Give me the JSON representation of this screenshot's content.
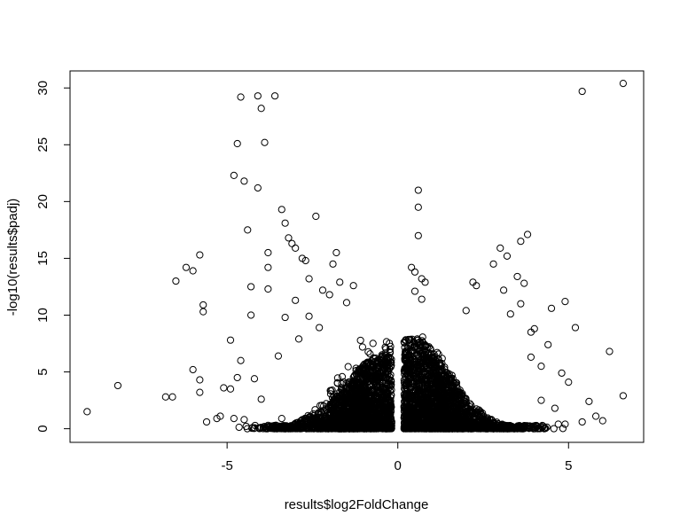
{
  "chart_data": {
    "type": "scatter",
    "title": "",
    "xlabel": "results$log2FoldChange",
    "ylabel": "-log10(results$padj)",
    "xlim": [
      -9.6,
      7.2
    ],
    "ylim": [
      -1.2,
      31.5
    ],
    "xticks": [
      -5,
      0,
      5
    ],
    "yticks": [
      0,
      5,
      10,
      15,
      20,
      25,
      30
    ],
    "xtick_labels": [
      "-5",
      "0",
      "5"
    ],
    "ytick_labels": [
      "0",
      "5",
      "10",
      "15",
      "20",
      "25",
      "30"
    ],
    "marker": "open-circle",
    "marker_color": "#000000",
    "grid": false,
    "legend": "none",
    "outlier_points": [
      [
        -9.1,
        1.5
      ],
      [
        -8.2,
        3.8
      ],
      [
        -6.8,
        2.8
      ],
      [
        -6.6,
        2.8
      ],
      [
        -6.5,
        13.0
      ],
      [
        -6.2,
        14.2
      ],
      [
        -6.0,
        13.9
      ],
      [
        -6.0,
        5.2
      ],
      [
        -5.8,
        15.3
      ],
      [
        -5.8,
        4.3
      ],
      [
        -5.8,
        3.2
      ],
      [
        -5.7,
        10.9
      ],
      [
        -5.7,
        10.3
      ],
      [
        -5.6,
        0.6
      ],
      [
        -5.3,
        0.9
      ],
      [
        -5.2,
        1.1
      ],
      [
        -5.1,
        3.6
      ],
      [
        -4.9,
        3.5
      ],
      [
        -4.9,
        7.8
      ],
      [
        -4.8,
        22.3
      ],
      [
        -4.8,
        0.9
      ],
      [
        -4.7,
        25.1
      ],
      [
        -4.6,
        29.2
      ],
      [
        -4.5,
        21.8
      ],
      [
        -4.4,
        17.5
      ],
      [
        -4.3,
        10.0
      ],
      [
        -4.3,
        12.5
      ],
      [
        -4.1,
        29.3
      ],
      [
        -4.1,
        21.2
      ],
      [
        -4.0,
        28.2
      ],
      [
        -3.9,
        25.2
      ],
      [
        -3.8,
        15.5
      ],
      [
        -3.8,
        14.2
      ],
      [
        -3.8,
        12.3
      ],
      [
        -3.6,
        29.3
      ],
      [
        -3.4,
        19.3
      ],
      [
        -3.3,
        18.1
      ],
      [
        -3.2,
        16.8
      ],
      [
        -3.1,
        16.3
      ],
      [
        -3.0,
        15.9
      ],
      [
        -2.8,
        15.0
      ],
      [
        -2.7,
        14.8
      ],
      [
        -2.6,
        13.2
      ],
      [
        -2.4,
        18.7
      ],
      [
        -2.2,
        12.2
      ],
      [
        -2.0,
        11.8
      ],
      [
        -1.9,
        14.5
      ],
      [
        -1.8,
        15.5
      ],
      [
        -1.7,
        12.9
      ],
      [
        -1.5,
        11.1
      ],
      [
        -1.3,
        12.6
      ],
      [
        -4.6,
        6.0
      ],
      [
        -4.7,
        4.5
      ],
      [
        -4.2,
        4.4
      ],
      [
        -4.5,
        0.8
      ],
      [
        -4.0,
        2.6
      ],
      [
        -3.5,
        6.4
      ],
      [
        -3.3,
        9.8
      ],
      [
        -3.0,
        11.3
      ],
      [
        -3.4,
        0.9
      ],
      [
        -2.9,
        7.9
      ],
      [
        -2.6,
        9.9
      ],
      [
        -2.3,
        8.9
      ],
      [
        0.6,
        21.0
      ],
      [
        0.6,
        19.5
      ],
      [
        0.6,
        17.0
      ],
      [
        0.4,
        14.2
      ],
      [
        0.5,
        13.8
      ],
      [
        0.7,
        13.2
      ],
      [
        0.8,
        12.9
      ],
      [
        0.5,
        12.1
      ],
      [
        0.7,
        11.4
      ],
      [
        6.6,
        30.4
      ],
      [
        5.4,
        29.7
      ],
      [
        3.8,
        17.1
      ],
      [
        3.6,
        16.5
      ],
      [
        3.0,
        15.9
      ],
      [
        3.2,
        15.2
      ],
      [
        2.8,
        14.5
      ],
      [
        3.5,
        13.4
      ],
      [
        3.7,
        12.8
      ],
      [
        2.2,
        12.9
      ],
      [
        2.3,
        12.6
      ],
      [
        3.1,
        12.2
      ],
      [
        3.6,
        11.0
      ],
      [
        4.9,
        11.2
      ],
      [
        4.5,
        10.6
      ],
      [
        2.0,
        10.4
      ],
      [
        3.3,
        10.1
      ],
      [
        5.2,
        8.9
      ],
      [
        3.9,
        8.5
      ],
      [
        4.0,
        8.8
      ],
      [
        4.4,
        7.4
      ],
      [
        6.2,
        6.8
      ],
      [
        4.8,
        4.9
      ],
      [
        5.0,
        4.1
      ],
      [
        5.4,
        0.6
      ],
      [
        5.6,
        2.4
      ],
      [
        5.8,
        1.1
      ],
      [
        6.0,
        0.7
      ],
      [
        6.6,
        2.9
      ],
      [
        4.7,
        0.4
      ],
      [
        4.9,
        0.4
      ],
      [
        4.6,
        1.8
      ],
      [
        4.2,
        2.5
      ],
      [
        3.9,
        6.3
      ],
      [
        4.2,
        5.5
      ]
    ],
    "dense_regions": [
      {
        "x_center": -1.0,
        "x_spread": 1.1,
        "y_peak": 6.5,
        "count": 1600
      },
      {
        "x_center": 0.95,
        "x_spread": 1.3,
        "y_peak": 8.0,
        "count": 1900
      },
      {
        "x_center": -2.6,
        "x_spread": 1.6,
        "y_peak": 10.0,
        "count": 380
      },
      {
        "x_center": 2.6,
        "x_spread": 1.6,
        "y_peak": 9.0,
        "count": 420
      }
    ]
  }
}
